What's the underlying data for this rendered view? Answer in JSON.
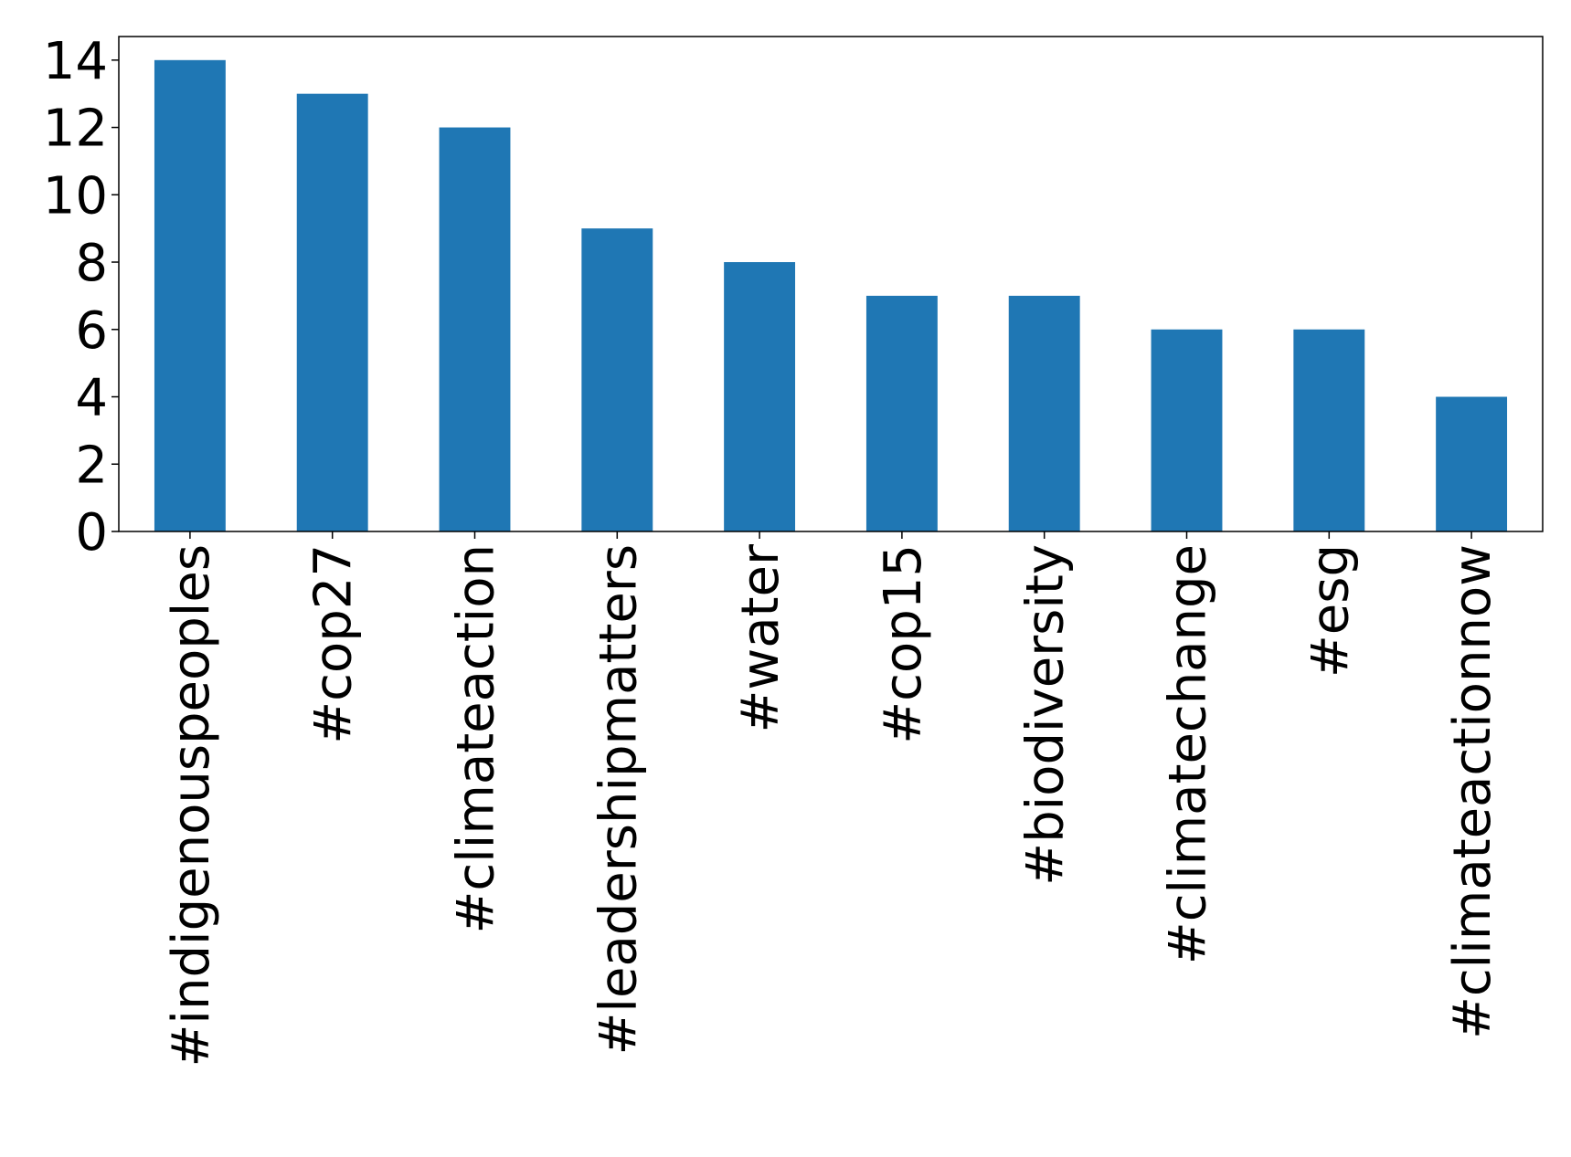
{
  "chart_data": {
    "type": "bar",
    "title": "",
    "xlabel": "",
    "ylabel": "",
    "categories": [
      "#indigenouspeoples",
      "#cop27",
      "#climateaction",
      "#leadershipmatters",
      "#water",
      "#cop15",
      "#biodiversity",
      "#climatechange",
      "#esg",
      "#climateactionnow"
    ],
    "values": [
      14,
      13,
      12,
      9,
      8,
      7,
      7,
      6,
      6,
      4
    ],
    "ylim": [
      0,
      14.7
    ],
    "yticks": [
      0,
      2,
      4,
      6,
      8,
      10,
      12,
      14
    ],
    "grid": false,
    "legend": "none",
    "colors": {
      "bar": "#1f77b4",
      "axis": "#000000",
      "background": "#ffffff"
    }
  }
}
